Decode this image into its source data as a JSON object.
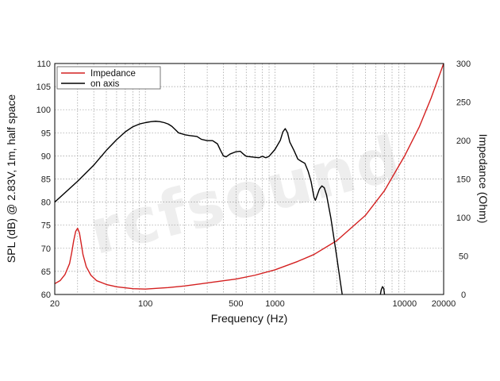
{
  "chart_data": {
    "type": "line",
    "xlabel": "Frequency (Hz)",
    "ylabel": "SPL (dB) @ 2.83V, 1m, half space",
    "y2label": "Impedance (Ohm)",
    "x_scale": "log",
    "xlim": [
      20,
      20000
    ],
    "ylim": [
      60,
      110
    ],
    "y2lim": [
      0,
      300
    ],
    "x_ticks": [
      20,
      100,
      500,
      1000,
      10000,
      20000
    ],
    "y_ticks": [
      60,
      65,
      70,
      75,
      80,
      85,
      90,
      95,
      100,
      105,
      110
    ],
    "y2_ticks": [
      0,
      50,
      100,
      150,
      200,
      250,
      300
    ],
    "grid": true,
    "legend_position": "top-left",
    "watermark": "rcfsound",
    "series": [
      {
        "name": "Impedance",
        "axis": "right",
        "color": "#d42020",
        "points": [
          [
            20,
            14
          ],
          [
            22,
            18
          ],
          [
            24,
            26
          ],
          [
            26,
            40
          ],
          [
            27,
            54
          ],
          [
            28,
            70
          ],
          [
            29,
            82
          ],
          [
            30,
            86
          ],
          [
            31,
            80
          ],
          [
            32,
            66
          ],
          [
            33,
            52
          ],
          [
            35,
            36
          ],
          [
            38,
            25
          ],
          [
            42,
            18
          ],
          [
            50,
            13
          ],
          [
            60,
            10
          ],
          [
            80,
            7.5
          ],
          [
            100,
            7
          ],
          [
            150,
            9
          ],
          [
            200,
            11
          ],
          [
            300,
            15
          ],
          [
            500,
            20
          ],
          [
            700,
            25
          ],
          [
            1000,
            32
          ],
          [
            1500,
            43
          ],
          [
            2000,
            52
          ],
          [
            3000,
            70
          ],
          [
            5000,
            103
          ],
          [
            7000,
            135
          ],
          [
            10000,
            180
          ],
          [
            13000,
            218
          ],
          [
            16000,
            255
          ],
          [
            20000,
            300
          ]
        ]
      },
      {
        "name": "on axis",
        "axis": "left",
        "color": "#000000",
        "points": [
          [
            20,
            80
          ],
          [
            30,
            84.5
          ],
          [
            40,
            88
          ],
          [
            50,
            91.2
          ],
          [
            60,
            93.5
          ],
          [
            70,
            95.2
          ],
          [
            80,
            96.3
          ],
          [
            90,
            96.9
          ],
          [
            100,
            97.2
          ],
          [
            110,
            97.4
          ],
          [
            120,
            97.5
          ],
          [
            130,
            97.4
          ],
          [
            140,
            97.2
          ],
          [
            150,
            96.9
          ],
          [
            160,
            96.4
          ],
          [
            170,
            95.7
          ],
          [
            180,
            95.0
          ],
          [
            190,
            94.8
          ],
          [
            200,
            94.6
          ],
          [
            220,
            94.4
          ],
          [
            250,
            94.2
          ],
          [
            270,
            93.6
          ],
          [
            300,
            93.3
          ],
          [
            330,
            93.3
          ],
          [
            360,
            92.6
          ],
          [
            380,
            91.2
          ],
          [
            400,
            90.0
          ],
          [
            420,
            89.8
          ],
          [
            450,
            90.4
          ],
          [
            500,
            90.9
          ],
          [
            540,
            91.0
          ],
          [
            570,
            90.4
          ],
          [
            600,
            89.9
          ],
          [
            700,
            89.7
          ],
          [
            750,
            89.6
          ],
          [
            800,
            89.9
          ],
          [
            850,
            89.6
          ],
          [
            900,
            89.9
          ],
          [
            1000,
            91.4
          ],
          [
            1100,
            93.4
          ],
          [
            1150,
            95.2
          ],
          [
            1200,
            95.9
          ],
          [
            1250,
            95.0
          ],
          [
            1300,
            93.0
          ],
          [
            1400,
            91.2
          ],
          [
            1500,
            89.3
          ],
          [
            1600,
            88.8
          ],
          [
            1700,
            88.4
          ],
          [
            1800,
            86.7
          ],
          [
            1900,
            84.4
          ],
          [
            2000,
            81.0
          ],
          [
            2050,
            80.4
          ],
          [
            2100,
            81.2
          ],
          [
            2200,
            82.8
          ],
          [
            2300,
            83.5
          ],
          [
            2400,
            83.1
          ],
          [
            2500,
            81.5
          ],
          [
            2700,
            76.5
          ],
          [
            3000,
            68.0
          ],
          [
            3200,
            62.5
          ],
          [
            3300,
            60.0
          ]
        ]
      },
      {
        "name": "",
        "axis": "left",
        "color": "#000000",
        "show_in_legend": false,
        "points": [
          [
            6500,
            60
          ],
          [
            6600,
            61.0
          ],
          [
            6750,
            61.7
          ],
          [
            6900,
            61.3
          ],
          [
            7000,
            60
          ]
        ]
      }
    ]
  }
}
